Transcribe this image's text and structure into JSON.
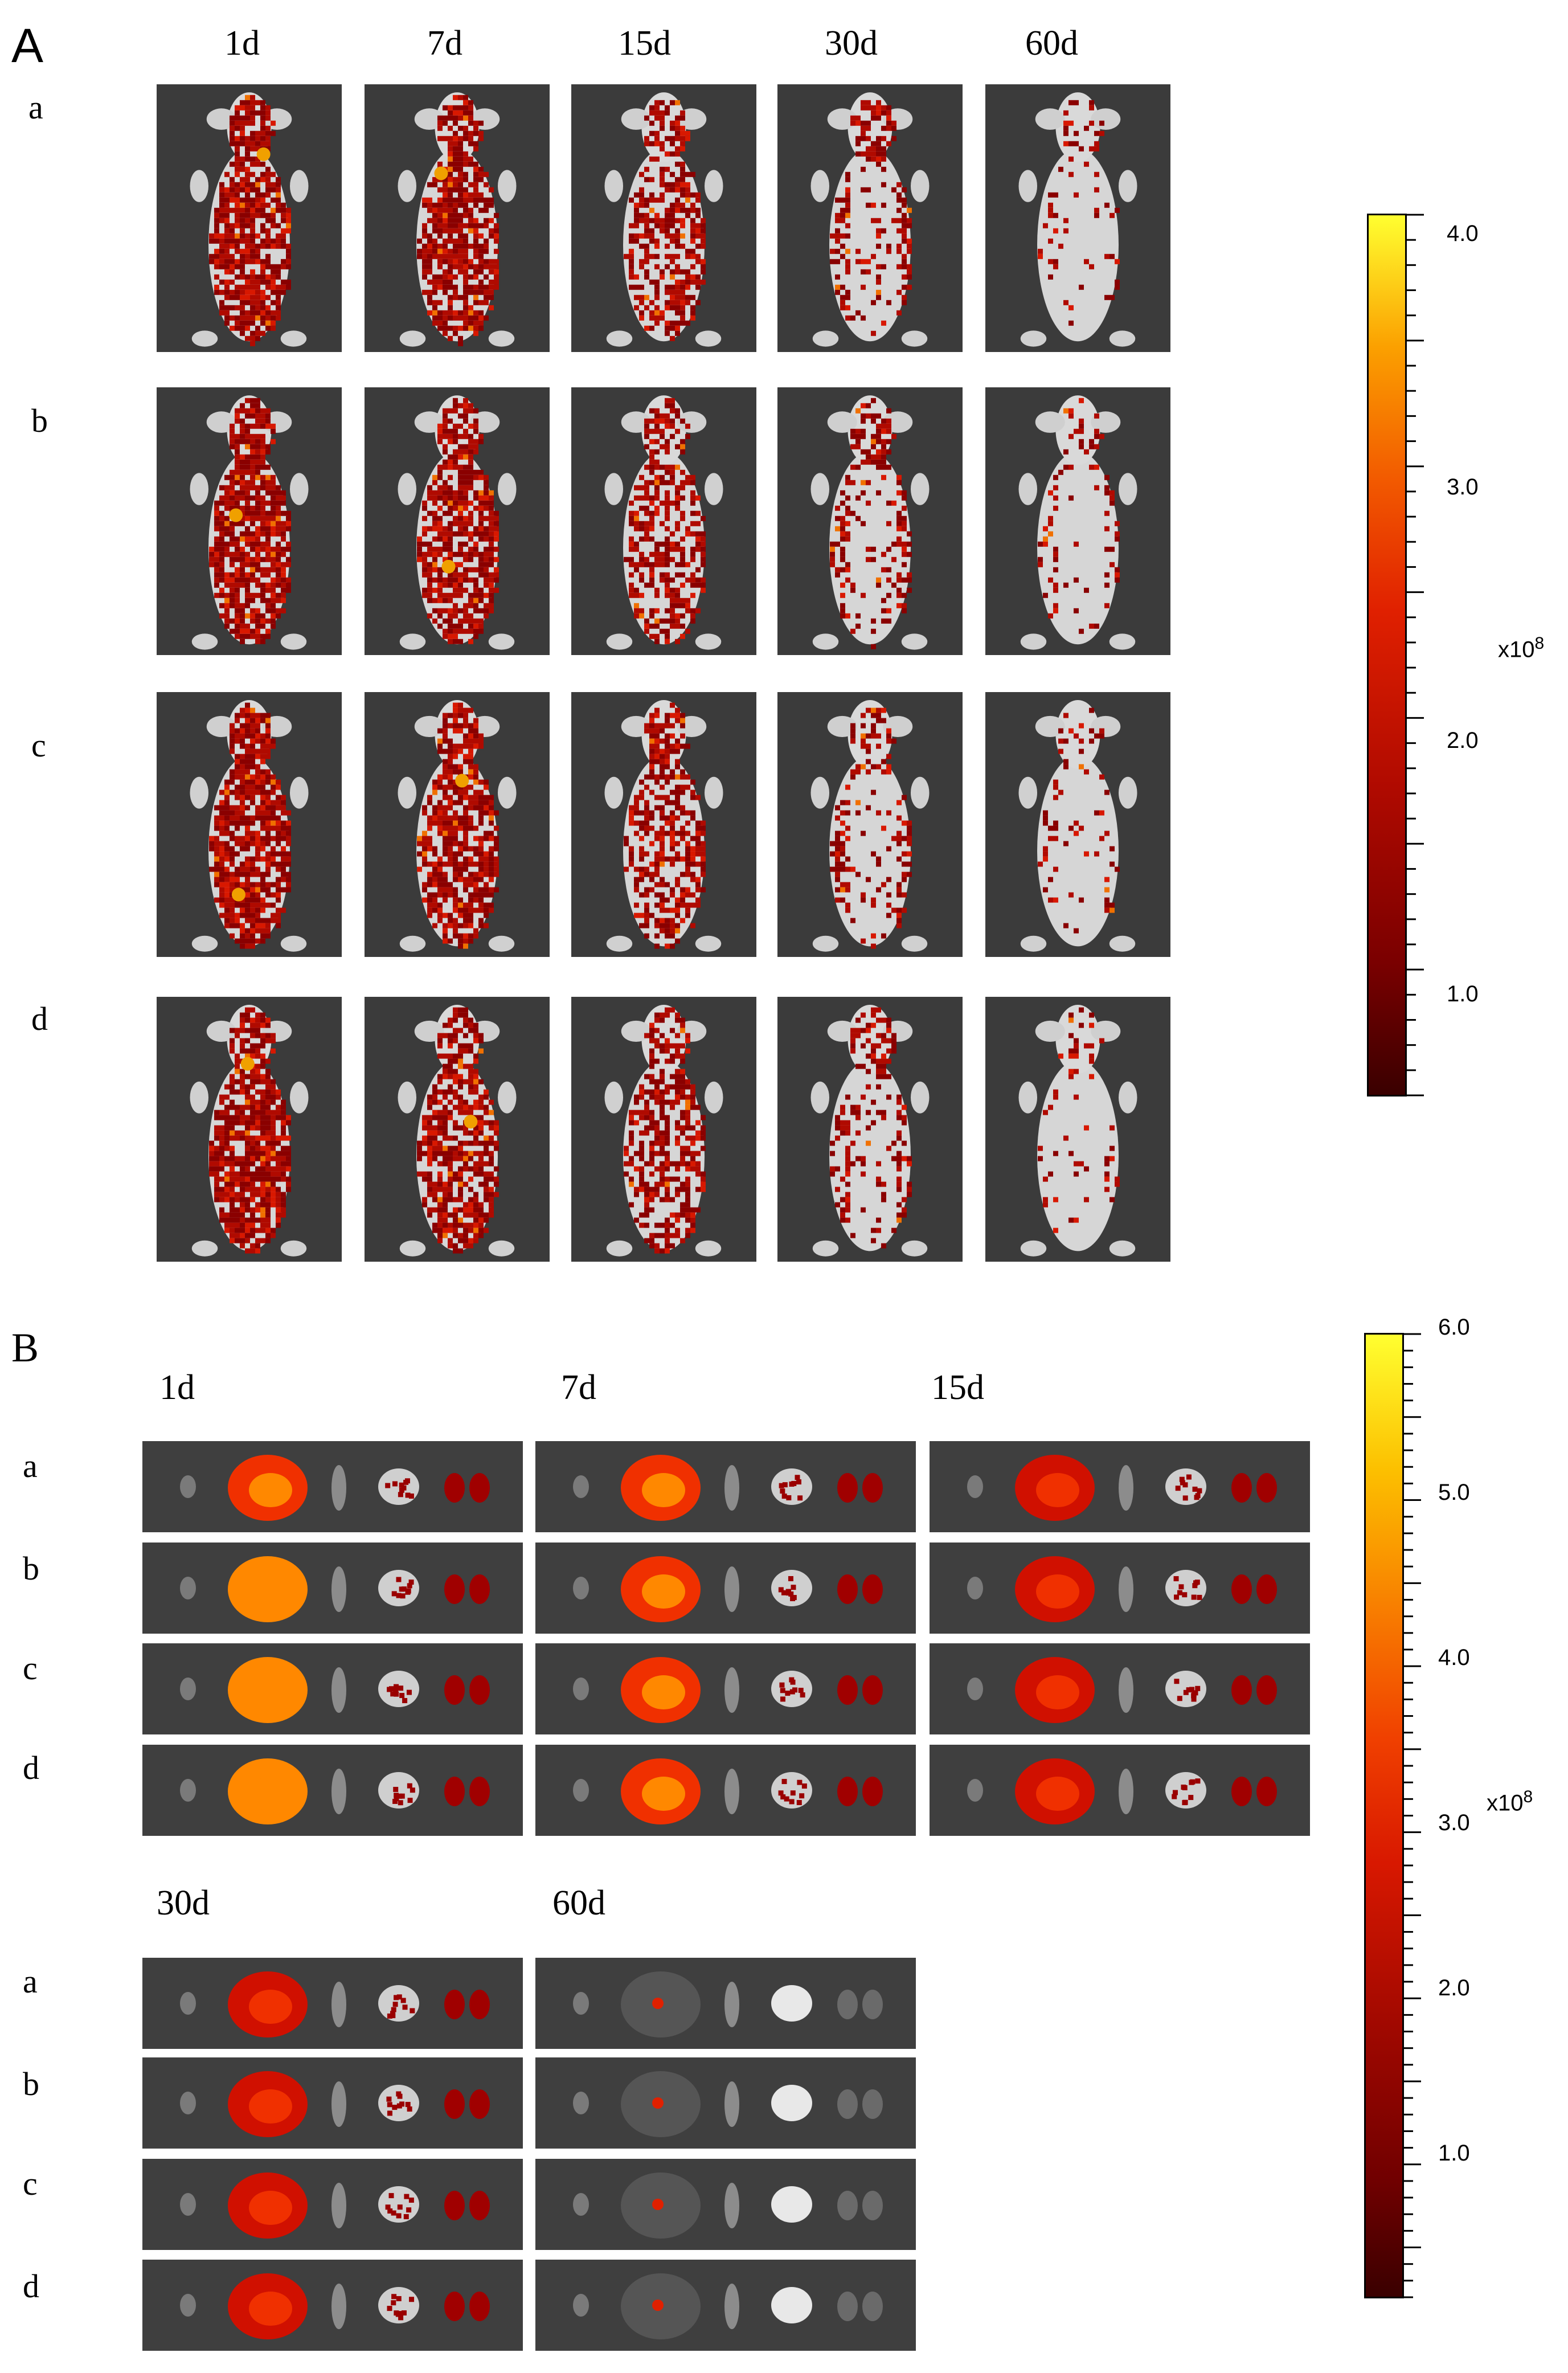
{
  "panel_a": {
    "letter": "A",
    "columns": [
      "1d",
      "7d",
      "15d",
      "30d",
      "60d"
    ],
    "rows": [
      "a",
      "b",
      "c",
      "d"
    ],
    "colorbar": {
      "ticks": [
        "4.0",
        "3.0",
        "2.0",
        "1.0"
      ],
      "tick_values": [
        4.0,
        3.0,
        2.0,
        1.0
      ],
      "min": 0.6,
      "max": 4.1,
      "unit_base": "x10",
      "unit_exp": "8"
    }
  },
  "panel_b": {
    "letter": "B",
    "upper_times": [
      "1d",
      "7d",
      "15d"
    ],
    "lower_times": [
      "30d",
      "60d"
    ],
    "rows": [
      "a",
      "b",
      "c",
      "d"
    ],
    "colorbar": {
      "ticks": [
        "6.0",
        "5.0",
        "4.0",
        "3.0",
        "2.0",
        "1.0"
      ],
      "tick_values": [
        6.0,
        5.0,
        4.0,
        3.0,
        2.0,
        1.0
      ],
      "min": 0.2,
      "max": 6.0,
      "unit_base": "x10",
      "unit_exp": "8"
    }
  },
  "colors": {
    "background_tile": "#3c3c3c",
    "mouse_body": "#d8d8d8",
    "signal_low": "#4a0000",
    "signal_mid": "#c81400",
    "signal_high": "#ffff20"
  }
}
